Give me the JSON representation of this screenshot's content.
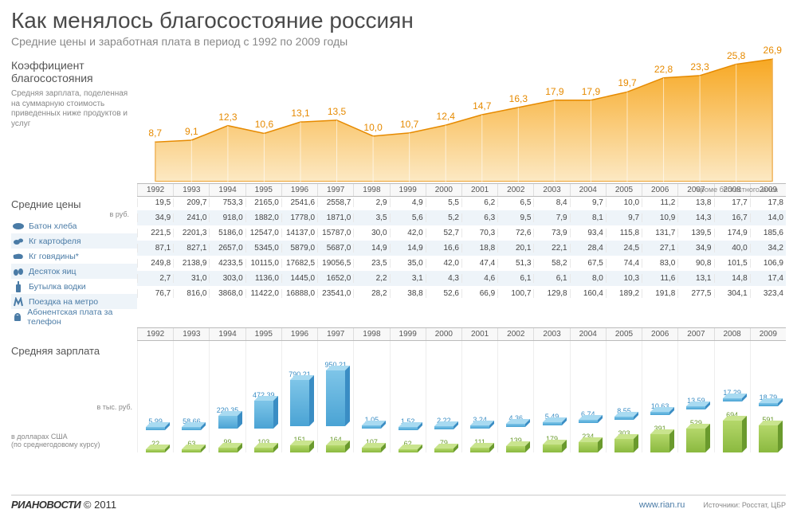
{
  "title": "Как менялось благосостояние россиян",
  "subtitle": "Средние цены и заработная плата в период с 1992 по 2009 годы",
  "coefficient": {
    "title": "Коэффициент благосостояния",
    "description": "Средняя зарплата, поделенная на суммарную стоимость приведенных ниже продуктов и услуг"
  },
  "years": [
    "1992",
    "1993",
    "1994",
    "1995",
    "1996",
    "1997",
    "1998",
    "1999",
    "2000",
    "2001",
    "2002",
    "2003",
    "2004",
    "2005",
    "2006",
    "2007",
    "2008",
    "2009"
  ],
  "area_chart": {
    "values": [
      8.7,
      9.1,
      12.3,
      10.6,
      13.1,
      13.5,
      10.0,
      10.7,
      12.4,
      14.7,
      16.3,
      17.9,
      17.9,
      19.7,
      22.8,
      23.3,
      25.8,
      26.9
    ],
    "labels": [
      "8,7",
      "9,1",
      "12,3",
      "10,6",
      "13,1",
      "13,5",
      "10,0",
      "10,7",
      "12,4",
      "14,7",
      "16,3",
      "17,9",
      "17,9",
      "19,7",
      "22,8",
      "23,3",
      "25,8",
      "26,9"
    ],
    "fill_top": "#f7a823",
    "fill_bottom": "#fce9c4",
    "stroke": "#e68a00",
    "ymax": 28,
    "label_color": "#e68a00",
    "label_fontsize": 12
  },
  "prices": {
    "header": "Средние цены",
    "unit": "в руб.",
    "note": "*кроме бескостного мяса",
    "products": [
      {
        "name": "Батон хлеба",
        "icon": "bread",
        "values": [
          "19,5",
          "209,7",
          "753,3",
          "2165,0",
          "2541,6",
          "2558,7",
          "2,9",
          "4,9",
          "5,5",
          "6,2",
          "6,5",
          "8,4",
          "9,7",
          "10,0",
          "11,2",
          "13,8",
          "17,7",
          "17,8"
        ]
      },
      {
        "name": "Кг картофеля",
        "icon": "potato",
        "values": [
          "34,9",
          "241,0",
          "918,0",
          "1882,0",
          "1778,0",
          "1871,0",
          "3,5",
          "5,6",
          "5,2",
          "6,3",
          "9,5",
          "7,9",
          "8,1",
          "9,7",
          "10,9",
          "14,3",
          "16,7",
          "14,0"
        ]
      },
      {
        "name": "Кг говядины*",
        "icon": "beef",
        "values": [
          "221,5",
          "2201,3",
          "5186,0",
          "12547,0",
          "14137,0",
          "15787,0",
          "30,0",
          "42,0",
          "52,7",
          "70,3",
          "72,6",
          "73,9",
          "93,4",
          "115,8",
          "131,7",
          "139,5",
          "174,9",
          "185,6"
        ]
      },
      {
        "name": "Десяток яиц",
        "icon": "eggs",
        "values": [
          "87,1",
          "827,1",
          "2657,0",
          "5345,0",
          "5879,0",
          "5687,0",
          "14,9",
          "14,9",
          "16,6",
          "18,8",
          "20,1",
          "22,1",
          "28,4",
          "24,5",
          "27,1",
          "34,9",
          "40,0",
          "34,2"
        ]
      },
      {
        "name": "Бутылка водки",
        "icon": "vodka",
        "values": [
          "249,8",
          "2138,9",
          "4233,5",
          "10115,0",
          "17682,5",
          "19056,5",
          "23,5",
          "35,0",
          "42,0",
          "47,4",
          "51,3",
          "58,2",
          "67,5",
          "74,4",
          "83,0",
          "90,8",
          "101,5",
          "106,9"
        ]
      },
      {
        "name": "Поездка на метро",
        "icon": "metro",
        "values": [
          "2,7",
          "31,0",
          "303,0",
          "1136,0",
          "1445,0",
          "1652,0",
          "2,2",
          "3,1",
          "4,3",
          "4,6",
          "6,1",
          "6,1",
          "8,0",
          "10,3",
          "11,6",
          "13,1",
          "14,8",
          "17,4"
        ]
      },
      {
        "name": "Абонентская плата за телефон",
        "icon": "phone",
        "values": [
          "76,7",
          "816,0",
          "3868,0",
          "11422,0",
          "16888,0",
          "23541,0",
          "28,2",
          "38,8",
          "52,6",
          "66,9",
          "100,7",
          "129,8",
          "160,4",
          "189,2",
          "191,8",
          "277,5",
          "304,1",
          "323,4"
        ]
      }
    ],
    "alt_bg": "#eef4f9",
    "icon_color": "#4a7ba6"
  },
  "salary": {
    "header": "Средняя зарплата",
    "unit_rub": "в тыс. руб.",
    "unit_usd": "в долларах США",
    "usd_note": "(по среднегодовому курсу)",
    "rub": {
      "values": [
        5.99,
        58.66,
        220.35,
        472.39,
        790.21,
        950.21,
        1.05,
        1.52,
        2.22,
        3.24,
        4.36,
        5.49,
        6.74,
        8.55,
        10.63,
        13.59,
        17.29,
        18.79
      ],
      "labels": [
        "5,99",
        "58,66",
        "220,35",
        "472,39",
        "790,21",
        "950,21",
        "1,05",
        "1,52",
        "2,22",
        "3,24",
        "4,36",
        "5,49",
        "6,74",
        "8,55",
        "10,63",
        "13,59",
        "17,29",
        "18,79"
      ],
      "max": 950.21,
      "colors": {
        "c1": "#7ec5e8",
        "c2": "#4aa3d4",
        "ct": "#a8daf1",
        "cs": "#3a8dc4"
      }
    },
    "usd": {
      "values": [
        22,
        63,
        99,
        103,
        151,
        164,
        107,
        62,
        79,
        111,
        139,
        179,
        234,
        303,
        391,
        529,
        694,
        591
      ],
      "labels": [
        "22",
        "63",
        "99",
        "103",
        "151",
        "164",
        "107",
        "62",
        "79",
        "111",
        "139",
        "179",
        "234",
        "303",
        "391",
        "529",
        "694",
        "591"
      ],
      "max": 694,
      "colors": {
        "c1": "#b4d76a",
        "c2": "#8ab93f",
        "ct": "#c9e48e",
        "cs": "#6a9a2d"
      }
    }
  },
  "footer": {
    "brand": "РИАНОВОСТИ",
    "copyright": "© 2011",
    "url": "www.rian.ru",
    "sources": "Источники: Росстат, ЦБР"
  }
}
